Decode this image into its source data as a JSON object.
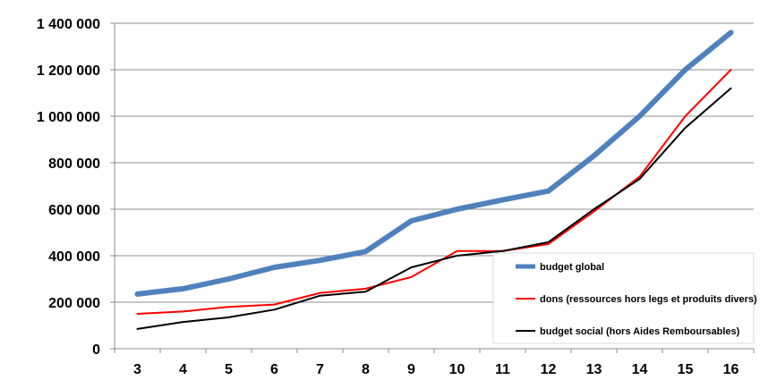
{
  "chart_data": {
    "type": "line",
    "title": "",
    "xlabel": "",
    "ylabel": "",
    "x": [
      3,
      4,
      5,
      6,
      7,
      8,
      9,
      10,
      11,
      12,
      13,
      14,
      15,
      16
    ],
    "ylim": [
      0,
      1400000
    ],
    "yticks": [
      {
        "value": 0,
        "label": "0"
      },
      {
        "value": 200000,
        "label": "200 000"
      },
      {
        "value": 400000,
        "label": "400 000"
      },
      {
        "value": 600000,
        "label": "600 000"
      },
      {
        "value": 800000,
        "label": "800 000"
      },
      {
        "value": 1000000,
        "label": "1 000 000"
      },
      {
        "value": 1200000,
        "label": "1 200 000"
      },
      {
        "value": 1400000,
        "label": "1 400 000"
      }
    ],
    "grid": "horizontal",
    "legend_position": "bottom-right",
    "series": [
      {
        "name": "budget global",
        "color": "#4F81BD",
        "values": [
          235000,
          258000,
          300000,
          350000,
          380000,
          418000,
          550000,
          600000,
          640000,
          678000,
          830000,
          1000000,
          1200000,
          1360000
        ]
      },
      {
        "name": "dons (ressources hors legs et produits divers)",
        "color": "#FF0000",
        "values": [
          150000,
          160000,
          180000,
          190000,
          240000,
          258000,
          308000,
          420000,
          420000,
          450000,
          590000,
          740000,
          1000000,
          1200000
        ]
      },
      {
        "name": "budget social (hors Aides Remboursables)",
        "color": "#000000",
        "values": [
          85000,
          115000,
          135000,
          168000,
          228000,
          245000,
          350000,
          400000,
          420000,
          458000,
          600000,
          730000,
          950000,
          1120000
        ]
      }
    ]
  }
}
